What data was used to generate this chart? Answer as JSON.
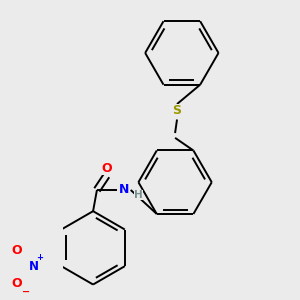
{
  "background_color": "#ebebeb",
  "bond_color": "#000000",
  "bond_lw": 1.4,
  "atom_colors": {
    "O": "#ff0000",
    "N": "#0000ff",
    "S": "#999900",
    "H": "#7a9090",
    "C": "#000000"
  },
  "figsize": [
    3.0,
    3.0
  ],
  "dpi": 100,
  "ring_r": 0.38
}
